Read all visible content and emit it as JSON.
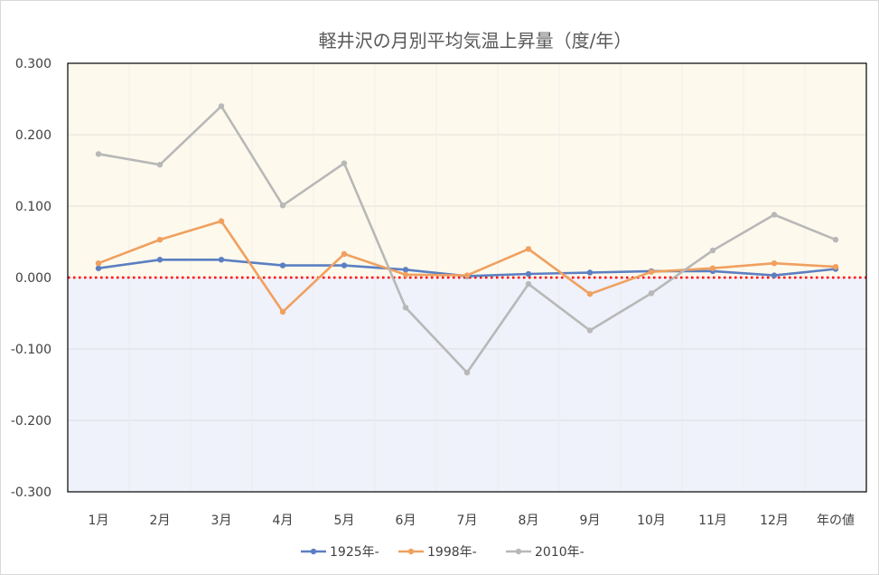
{
  "chart_data": {
    "type": "line",
    "title": "軽井沢の月別平均気温上昇量（度/年）",
    "categories": [
      "1月",
      "2月",
      "3月",
      "4月",
      "5月",
      "6月",
      "7月",
      "8月",
      "9月",
      "10月",
      "11月",
      "12月",
      "年の値"
    ],
    "yticks": [
      "0.300",
      "0.200",
      "0.100",
      "0.000",
      "-0.100",
      "-0.200",
      "-0.300"
    ],
    "ylim": [
      -0.3,
      0.3
    ],
    "grid": true,
    "legend_position": "bottom",
    "reference_line": {
      "y": 0.0,
      "color": "#ff0000",
      "style": "dotted"
    },
    "background_bands": {
      "positive": "#fdf9ec",
      "negative": "#eff1fb"
    },
    "series": [
      {
        "name": "1925年-",
        "color": "#5b7fc2",
        "values": [
          0.013,
          0.025,
          0.025,
          0.017,
          0.017,
          0.011,
          0.002,
          0.005,
          0.007,
          0.009,
          0.009,
          0.003,
          0.012
        ]
      },
      {
        "name": "1998年-",
        "color": "#f0a05f",
        "values": [
          0.02,
          0.053,
          0.079,
          -0.048,
          0.033,
          0.004,
          0.003,
          0.04,
          -0.023,
          0.008,
          0.013,
          0.02,
          0.015
        ]
      },
      {
        "name": "2010年-",
        "color": "#b8b8b8",
        "values": [
          0.173,
          0.158,
          0.24,
          0.101,
          0.16,
          -0.042,
          -0.133,
          -0.009,
          -0.074,
          -0.022,
          0.038,
          0.088,
          0.053
        ]
      }
    ]
  }
}
